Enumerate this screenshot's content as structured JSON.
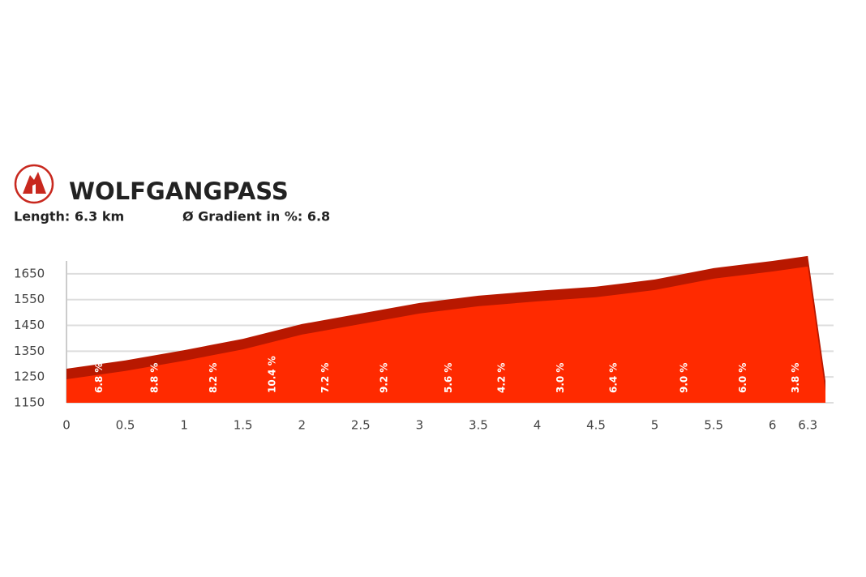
{
  "chart_data": {
    "type": "area",
    "title": "WOLFGANGPASS",
    "subtitle": [
      "Length: 6.3 km",
      "Ø Gradient in %: 6.8"
    ],
    "x": [
      0,
      0.5,
      1,
      1.5,
      2,
      2.5,
      3,
      3.5,
      4,
      4.5,
      5,
      5.5,
      6,
      6.3,
      6.45
    ],
    "values": [
      1282,
      1314,
      1354,
      1398,
      1455,
      1496,
      1537,
      1565,
      1584,
      1600,
      1628,
      1672,
      1700,
      1719,
      1235
    ],
    "color": "#b81800",
    "front_color": "#ff2a00",
    "gradients": {
      "x": [
        0.28,
        0.75,
        1.25,
        1.75,
        2.2,
        2.7,
        3.25,
        3.7,
        4.2,
        4.65,
        5.25,
        5.75,
        6.2
      ],
      "values": [
        6.8,
        8.8,
        8.2,
        10.4,
        7.2,
        9.2,
        5.6,
        4.2,
        3.0,
        6.4,
        9.0,
        6.0,
        3.8
      ],
      "value_labels": [
        "6.8 %",
        "8.8 %",
        "8.2 %",
        "10.4 %",
        "7.2 %",
        "9.2 %",
        "5.6 %",
        "4.2 %",
        "3.0 %",
        "6.4 %",
        "9.0 %",
        "6.0 %",
        "3.8 %"
      ]
    },
    "xlim": [
      0,
      6.45
    ],
    "xticks": [
      0,
      0.5,
      1,
      1.5,
      2,
      2.5,
      3,
      3.5,
      4,
      4.5,
      5,
      5.5,
      6,
      6.3
    ],
    "ylim": [
      1150,
      1725
    ],
    "yticks": [
      1150,
      1250,
      1350,
      1450,
      1550,
      1650
    ],
    "grid": true
  }
}
